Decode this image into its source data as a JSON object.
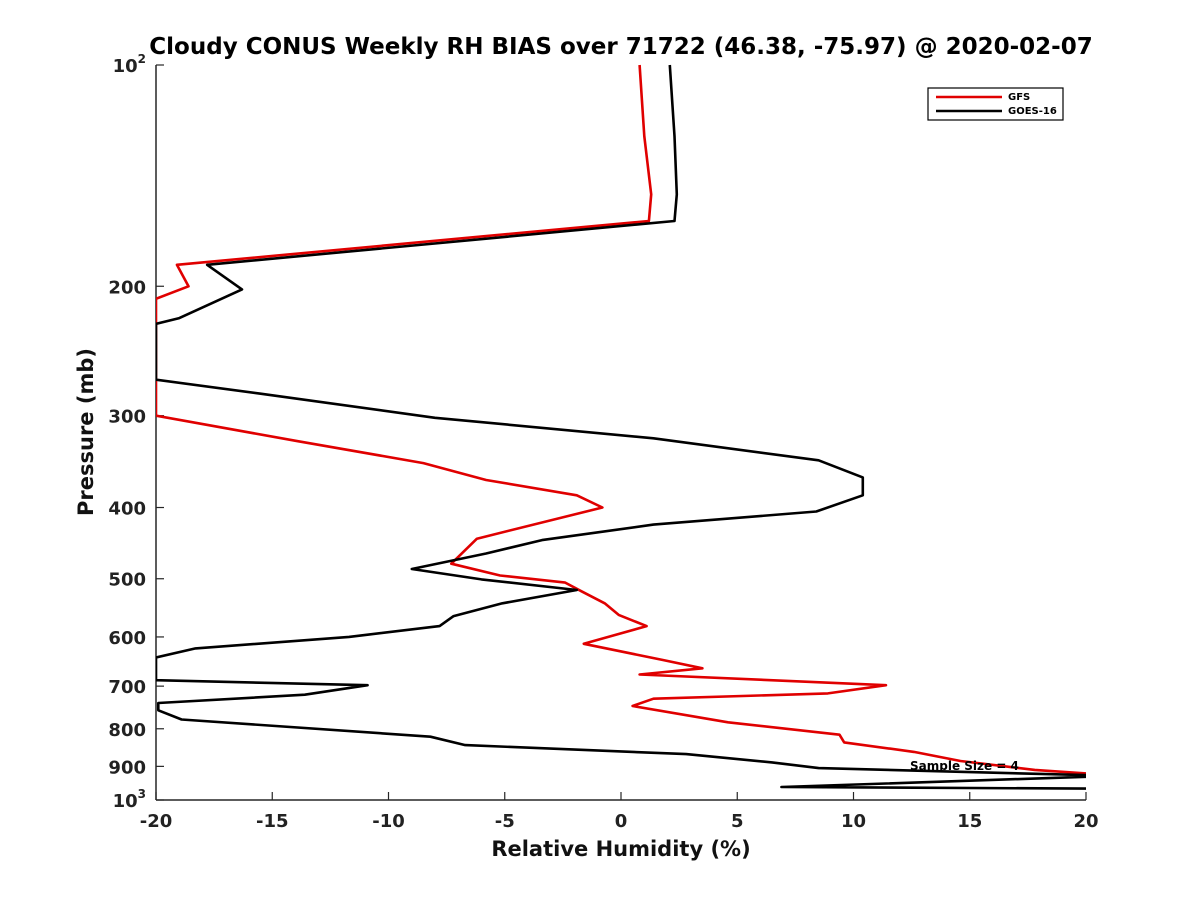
{
  "chart_data": {
    "type": "line",
    "title": "Cloudy CONUS Weekly RH BIAS over 71722 (46.38, -75.97) @ 2020-02-07",
    "xlabel": "Relative Humidity (%)",
    "ylabel": "Pressure (mb)",
    "xlim": [
      -20,
      20
    ],
    "ylim": [
      100,
      1000
    ],
    "yscale": "log",
    "y_reversed": true,
    "grid": false,
    "legend_position": "top-right",
    "x_ticks": [
      "-20",
      "-15",
      "-10",
      "-5",
      "0",
      "5",
      "10",
      "15",
      "20"
    ],
    "y_ticks": [
      {
        "base": "10",
        "exp": "2"
      },
      {
        "base": "200",
        "exp": ""
      },
      {
        "base": "300",
        "exp": ""
      },
      {
        "base": "400",
        "exp": ""
      },
      {
        "base": "500",
        "exp": ""
      },
      {
        "base": "600",
        "exp": ""
      },
      {
        "base": "700",
        "exp": ""
      },
      {
        "base": "800",
        "exp": ""
      },
      {
        "base": "900",
        "exp": ""
      },
      {
        "base": "10",
        "exp": "3"
      }
    ],
    "annotation": "Sample Size = 4",
    "series": [
      {
        "name": "GFS",
        "color": "#e00000",
        "points": [
          [
            0.8,
            100
          ],
          [
            1.0,
            125
          ],
          [
            1.3,
            150
          ],
          [
            1.2,
            163
          ],
          [
            -19.1,
            187
          ],
          [
            -18.6,
            200
          ],
          [
            -20.0,
            208
          ],
          [
            -20.0,
            300
          ],
          [
            -13.9,
            325
          ],
          [
            -8.5,
            348
          ],
          [
            -5.8,
            367
          ],
          [
            -1.9,
            385
          ],
          [
            -0.8,
            400
          ],
          [
            -6.2,
            441
          ],
          [
            -7.3,
            477
          ],
          [
            -5.2,
            495
          ],
          [
            -2.4,
            506
          ],
          [
            -1.7,
            520
          ],
          [
            -0.7,
            540
          ],
          [
            -0.1,
            560
          ],
          [
            1.1,
            580
          ],
          [
            -1.6,
            613
          ],
          [
            1.8,
            645
          ],
          [
            3.5,
            662
          ],
          [
            0.8,
            675
          ],
          [
            11.4,
            698
          ],
          [
            8.9,
            716
          ],
          [
            1.4,
            728
          ],
          [
            0.5,
            745
          ],
          [
            4.6,
            784
          ],
          [
            9.4,
            815
          ],
          [
            9.6,
            835
          ],
          [
            12.6,
            860
          ],
          [
            14.6,
            885
          ],
          [
            17.8,
            910
          ],
          [
            20.0,
            920
          ]
        ]
      },
      {
        "name": "GOES-16",
        "color": "#000000",
        "points": [
          [
            2.1,
            100
          ],
          [
            2.3,
            125
          ],
          [
            2.4,
            150
          ],
          [
            2.3,
            163
          ],
          [
            -17.8,
            187
          ],
          [
            -16.3,
            202
          ],
          [
            -19.0,
            221
          ],
          [
            -20.0,
            225
          ],
          [
            -20.0,
            268
          ],
          [
            -15.5,
            280
          ],
          [
            -8.0,
            302
          ],
          [
            1.4,
            322
          ],
          [
            8.5,
            345
          ],
          [
            10.4,
            364
          ],
          [
            10.4,
            385
          ],
          [
            8.4,
            405
          ],
          [
            1.4,
            422
          ],
          [
            -3.4,
            443
          ],
          [
            -5.8,
            462
          ],
          [
            -9.0,
            485
          ],
          [
            -6.0,
            501
          ],
          [
            -1.9,
            518
          ],
          [
            -5.1,
            540
          ],
          [
            -7.2,
            562
          ],
          [
            -7.8,
            580
          ],
          [
            -11.7,
            600
          ],
          [
            -18.3,
            622
          ],
          [
            -20.0,
            640
          ],
          [
            -20.0,
            687
          ],
          [
            -10.9,
            698
          ],
          [
            -13.6,
            719
          ],
          [
            -19.9,
            738
          ],
          [
            -19.9,
            755
          ],
          [
            -18.9,
            777
          ],
          [
            -8.2,
            820
          ],
          [
            -6.7,
            842
          ],
          [
            2.8,
            866
          ],
          [
            6.5,
            889
          ],
          [
            8.5,
            905
          ],
          [
            20.0,
            925
          ],
          [
            20.0,
            930
          ],
          [
            6.9,
            960
          ],
          [
            20.0,
            965
          ]
        ]
      }
    ]
  }
}
